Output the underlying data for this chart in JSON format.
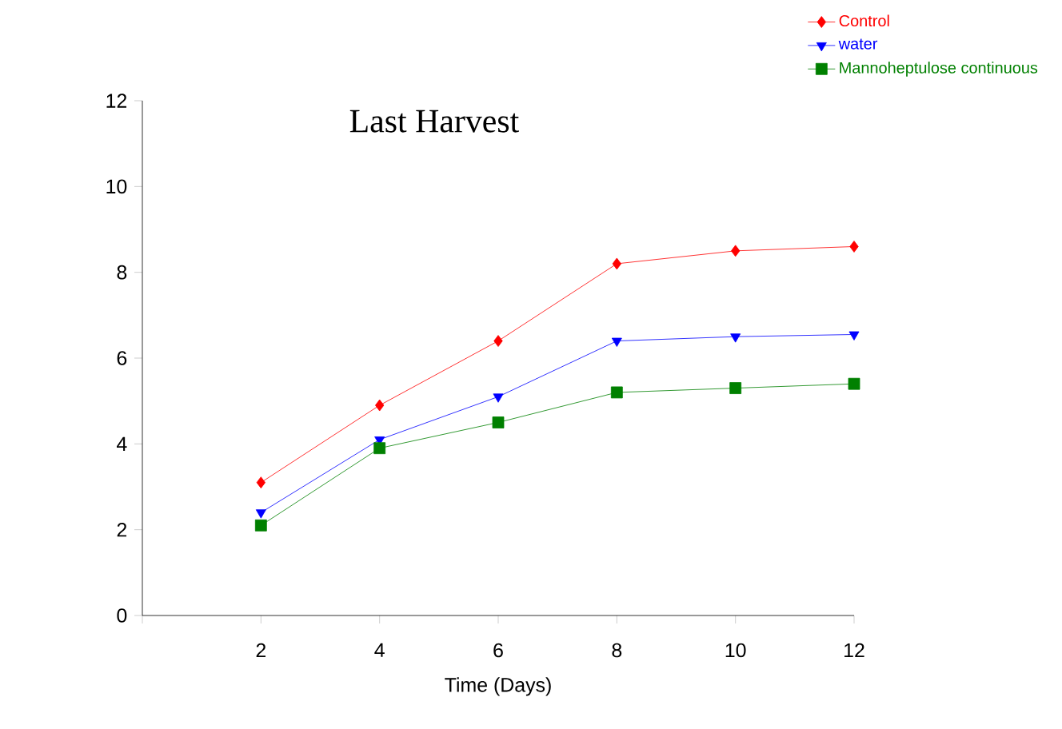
{
  "chart_data": {
    "type": "line",
    "title": "Last Harvest",
    "xlabel": "Time (Days)",
    "x": [
      2,
      4,
      6,
      8,
      10,
      12
    ],
    "series": [
      {
        "name": "Control",
        "color": "#ff0000",
        "marker": "diamond",
        "values": [
          3.1,
          4.9,
          6.4,
          8.2,
          8.5,
          8.6
        ]
      },
      {
        "name": "water",
        "color": "#0000ff",
        "marker": "triangle",
        "values": [
          2.4,
          4.1,
          5.1,
          6.4,
          6.5,
          6.55
        ]
      },
      {
        "name": "Mannoheptulose continuous",
        "color": "#008000",
        "marker": "square",
        "values": [
          2.1,
          3.9,
          4.5,
          5.2,
          5.3,
          5.4
        ]
      }
    ],
    "xlim": [
      0,
      12
    ],
    "xticks": [
      {
        "value": 0,
        "label": null
      },
      2,
      4,
      6,
      8,
      10,
      12
    ],
    "ylim": [
      0,
      12
    ],
    "yticks": [
      0,
      2,
      4,
      6,
      8,
      10,
      12
    ],
    "grid": false,
    "legend": "top right",
    "line_style": "solid"
  }
}
